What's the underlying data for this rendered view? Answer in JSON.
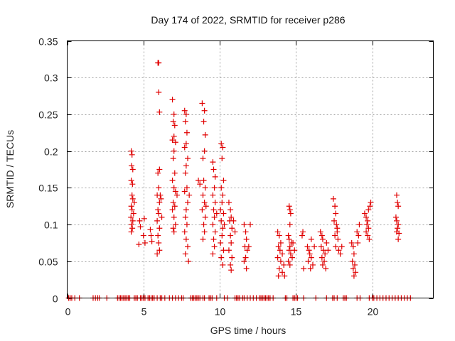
{
  "chart_data": {
    "type": "scatter",
    "title": "Day 174 of 2022, SRMTID for receiver p286",
    "xlabel": "GPS time / hours",
    "ylabel": "SRMTID / TECUs",
    "xlim": [
      0,
      24
    ],
    "ylim": [
      0,
      0.35
    ],
    "xticks": [
      0,
      5,
      10,
      15,
      20
    ],
    "xtick_labels": [
      "0",
      "5",
      "10",
      "15",
      "20"
    ],
    "yticks": [
      0,
      0.05,
      0.1,
      0.15,
      0.2,
      0.25,
      0.3,
      0.35
    ],
    "ytick_labels": [
      "0",
      "0.05",
      "0.1",
      "0.15",
      "0.2",
      "0.25",
      "0.3",
      "0.35"
    ],
    "grid": true,
    "legend": "none",
    "marker": "plus",
    "color": "#e00000",
    "series": [
      {
        "name": "SRMTID",
        "points": [
          [
            4.2,
            0.2
          ],
          [
            4.25,
            0.195
          ],
          [
            4.22,
            0.18
          ],
          [
            4.3,
            0.175
          ],
          [
            4.2,
            0.16
          ],
          [
            4.28,
            0.155
          ],
          [
            4.25,
            0.14
          ],
          [
            4.3,
            0.135
          ],
          [
            4.2,
            0.125
          ],
          [
            4.25,
            0.12
          ],
          [
            4.18,
            0.11
          ],
          [
            4.3,
            0.105
          ],
          [
            4.22,
            0.1
          ],
          [
            4.27,
            0.095
          ],
          [
            4.2,
            0.09
          ],
          [
            4.35,
            0.115
          ],
          [
            4.4,
            0.13
          ],
          [
            4.75,
            0.105
          ],
          [
            4.8,
            0.097
          ],
          [
            4.7,
            0.073
          ],
          [
            5.0,
            0.085
          ],
          [
            5.1,
            0.075
          ],
          [
            5.05,
            0.108
          ],
          [
            5.5,
            0.085
          ],
          [
            5.55,
            0.077
          ],
          [
            5.45,
            0.093
          ],
          [
            5.95,
            0.32
          ],
          [
            6.0,
            0.32
          ],
          [
            6.0,
            0.28
          ],
          [
            6.05,
            0.253
          ],
          [
            5.95,
            0.17
          ],
          [
            6.05,
            0.175
          ],
          [
            6.0,
            0.15
          ],
          [
            5.9,
            0.14
          ],
          [
            6.05,
            0.13
          ],
          [
            5.95,
            0.12
          ],
          [
            6.0,
            0.115
          ],
          [
            5.9,
            0.105
          ],
          [
            6.05,
            0.095
          ],
          [
            5.95,
            0.085
          ],
          [
            6.0,
            0.075
          ],
          [
            6.05,
            0.065
          ],
          [
            5.9,
            0.06
          ],
          [
            6.1,
            0.14
          ],
          [
            6.15,
            0.135
          ],
          [
            6.2,
            0.11
          ],
          [
            6.9,
            0.27
          ],
          [
            7.0,
            0.25
          ],
          [
            6.95,
            0.24
          ],
          [
            7.05,
            0.235
          ],
          [
            7.0,
            0.22
          ],
          [
            6.9,
            0.215
          ],
          [
            7.1,
            0.212
          ],
          [
            7.0,
            0.2
          ],
          [
            6.95,
            0.19
          ],
          [
            7.05,
            0.17
          ],
          [
            6.9,
            0.16
          ],
          [
            7.0,
            0.15
          ],
          [
            7.1,
            0.145
          ],
          [
            6.95,
            0.13
          ],
          [
            7.05,
            0.125
          ],
          [
            6.9,
            0.12
          ],
          [
            7.0,
            0.11
          ],
          [
            7.1,
            0.1
          ],
          [
            6.95,
            0.095
          ],
          [
            7.0,
            0.09
          ],
          [
            7.2,
            0.14
          ],
          [
            7.7,
            0.255
          ],
          [
            7.8,
            0.25
          ],
          [
            7.75,
            0.24
          ],
          [
            7.85,
            0.225
          ],
          [
            7.8,
            0.21
          ],
          [
            7.7,
            0.205
          ],
          [
            7.9,
            0.19
          ],
          [
            7.8,
            0.18
          ],
          [
            7.75,
            0.17
          ],
          [
            7.85,
            0.15
          ],
          [
            7.7,
            0.145
          ],
          [
            7.9,
            0.13
          ],
          [
            7.8,
            0.12
          ],
          [
            7.75,
            0.11
          ],
          [
            7.85,
            0.1
          ],
          [
            7.7,
            0.09
          ],
          [
            7.8,
            0.08
          ],
          [
            7.9,
            0.07
          ],
          [
            7.75,
            0.06
          ],
          [
            7.95,
            0.05
          ],
          [
            8.0,
            0.14
          ],
          [
            8.85,
            0.265
          ],
          [
            9.0,
            0.255
          ],
          [
            8.95,
            0.24
          ],
          [
            9.05,
            0.222
          ],
          [
            9.0,
            0.2
          ],
          [
            8.9,
            0.19
          ],
          [
            8.95,
            0.16
          ],
          [
            9.05,
            0.15
          ],
          [
            8.9,
            0.14
          ],
          [
            9.0,
            0.13
          ],
          [
            8.85,
            0.12
          ],
          [
            9.05,
            0.11
          ],
          [
            8.95,
            0.1
          ],
          [
            9.0,
            0.09
          ],
          [
            8.9,
            0.08
          ],
          [
            9.1,
            0.125
          ],
          [
            8.6,
            0.16
          ],
          [
            8.7,
            0.155
          ],
          [
            9.55,
            0.185
          ],
          [
            9.6,
            0.175
          ],
          [
            9.7,
            0.165
          ],
          [
            9.65,
            0.15
          ],
          [
            9.55,
            0.14
          ],
          [
            9.7,
            0.13
          ],
          [
            9.6,
            0.12
          ],
          [
            9.65,
            0.11
          ],
          [
            9.55,
            0.1
          ],
          [
            9.7,
            0.09
          ],
          [
            9.6,
            0.08
          ],
          [
            9.65,
            0.07
          ],
          [
            9.55,
            0.06
          ],
          [
            9.8,
            0.115
          ],
          [
            10.1,
            0.21
          ],
          [
            10.2,
            0.205
          ],
          [
            10.15,
            0.19
          ],
          [
            10.25,
            0.16
          ],
          [
            10.1,
            0.15
          ],
          [
            10.2,
            0.14
          ],
          [
            10.15,
            0.13
          ],
          [
            10.05,
            0.12
          ],
          [
            10.25,
            0.115
          ],
          [
            10.1,
            0.105
          ],
          [
            10.2,
            0.095
          ],
          [
            10.15,
            0.085
          ],
          [
            10.05,
            0.075
          ],
          [
            10.25,
            0.065
          ],
          [
            10.1,
            0.055
          ],
          [
            10.2,
            0.045
          ],
          [
            10.3,
            0.1
          ],
          [
            10.6,
            0.13
          ],
          [
            10.7,
            0.12
          ],
          [
            10.75,
            0.11
          ],
          [
            10.65,
            0.105
          ],
          [
            10.8,
            0.095
          ],
          [
            10.7,
            0.085
          ],
          [
            10.75,
            0.075
          ],
          [
            10.6,
            0.065
          ],
          [
            10.8,
            0.055
          ],
          [
            10.7,
            0.045
          ],
          [
            10.75,
            0.038
          ],
          [
            10.9,
            0.105
          ],
          [
            11.0,
            0.09
          ],
          [
            11.6,
            0.1
          ],
          [
            11.7,
            0.09
          ],
          [
            11.75,
            0.08
          ],
          [
            11.65,
            0.07
          ],
          [
            11.8,
            0.065
          ],
          [
            11.7,
            0.055
          ],
          [
            11.6,
            0.05
          ],
          [
            11.75,
            0.04
          ],
          [
            12.0,
            0.1
          ],
          [
            11.9,
            0.07
          ],
          [
            13.8,
            0.09
          ],
          [
            13.9,
            0.085
          ],
          [
            14.0,
            0.075
          ],
          [
            13.85,
            0.07
          ],
          [
            13.95,
            0.065
          ],
          [
            14.1,
            0.06
          ],
          [
            13.8,
            0.055
          ],
          [
            14.0,
            0.05
          ],
          [
            14.2,
            0.045
          ],
          [
            13.9,
            0.04
          ],
          [
            14.1,
            0.035
          ],
          [
            14.25,
            0.03
          ],
          [
            13.85,
            0.03
          ],
          [
            14.55,
            0.125
          ],
          [
            14.6,
            0.12
          ],
          [
            14.65,
            0.115
          ],
          [
            14.6,
            0.1
          ],
          [
            14.5,
            0.085
          ],
          [
            14.55,
            0.08
          ],
          [
            14.7,
            0.075
          ],
          [
            14.6,
            0.07
          ],
          [
            14.55,
            0.065
          ],
          [
            14.65,
            0.06
          ],
          [
            14.75,
            0.055
          ],
          [
            14.5,
            0.05
          ],
          [
            14.6,
            0.045
          ],
          [
            14.8,
            0.075
          ],
          [
            14.9,
            0.065
          ],
          [
            15.45,
            0.09
          ],
          [
            15.4,
            0.085
          ],
          [
            15.5,
            0.04
          ],
          [
            15.75,
            0.07
          ],
          [
            15.85,
            0.065
          ],
          [
            15.9,
            0.06
          ],
          [
            16.0,
            0.055
          ],
          [
            15.8,
            0.05
          ],
          [
            16.1,
            0.045
          ],
          [
            16.0,
            0.08
          ],
          [
            16.2,
            0.07
          ],
          [
            15.95,
            0.04
          ],
          [
            16.6,
            0.09
          ],
          [
            16.7,
            0.085
          ],
          [
            16.75,
            0.08
          ],
          [
            16.65,
            0.07
          ],
          [
            16.8,
            0.065
          ],
          [
            16.9,
            0.06
          ],
          [
            16.7,
            0.055
          ],
          [
            16.85,
            0.05
          ],
          [
            16.75,
            0.045
          ],
          [
            16.95,
            0.04
          ],
          [
            17.0,
            0.075
          ],
          [
            17.1,
            0.065
          ],
          [
            17.45,
            0.135
          ],
          [
            17.55,
            0.125
          ],
          [
            17.6,
            0.115
          ],
          [
            17.5,
            0.105
          ],
          [
            17.65,
            0.1
          ],
          [
            17.7,
            0.09
          ],
          [
            17.55,
            0.085
          ],
          [
            17.75,
            0.08
          ],
          [
            17.6,
            0.07
          ],
          [
            17.8,
            0.065
          ],
          [
            17.9,
            0.06
          ],
          [
            17.7,
            0.095
          ],
          [
            18.0,
            0.07
          ],
          [
            18.65,
            0.075
          ],
          [
            18.75,
            0.07
          ],
          [
            18.8,
            0.06
          ],
          [
            18.7,
            0.05
          ],
          [
            18.85,
            0.045
          ],
          [
            18.75,
            0.04
          ],
          [
            18.9,
            0.035
          ],
          [
            18.8,
            0.03
          ],
          [
            19.0,
            0.09
          ],
          [
            19.1,
            0.085
          ],
          [
            19.15,
            0.1
          ],
          [
            19.05,
            0.075
          ],
          [
            19.5,
            0.115
          ],
          [
            19.6,
            0.11
          ],
          [
            19.7,
            0.105
          ],
          [
            19.65,
            0.1
          ],
          [
            19.75,
            0.095
          ],
          [
            19.6,
            0.09
          ],
          [
            19.7,
            0.085
          ],
          [
            19.8,
            0.08
          ],
          [
            19.85,
            0.125
          ],
          [
            19.75,
            0.12
          ],
          [
            19.9,
            0.13
          ],
          [
            21.6,
            0.14
          ],
          [
            21.65,
            0.13
          ],
          [
            21.7,
            0.125
          ],
          [
            21.55,
            0.11
          ],
          [
            21.6,
            0.105
          ],
          [
            21.7,
            0.1
          ],
          [
            21.65,
            0.095
          ],
          [
            21.6,
            0.09
          ],
          [
            21.75,
            0.088
          ],
          [
            21.7,
            0.08
          ]
        ],
        "zero_points_hours": [
          0.1,
          0.2,
          0.3,
          0.5,
          0.8,
          1.7,
          1.85,
          2.0,
          2.1,
          2.6,
          3.3,
          3.4,
          3.5,
          3.6,
          3.7,
          3.8,
          3.9,
          4.0,
          4.1,
          4.4,
          4.5,
          4.6,
          4.8,
          4.9,
          5.0,
          5.1,
          5.3,
          5.4,
          5.5,
          5.6,
          5.7,
          5.9,
          6.1,
          6.2,
          6.4,
          6.7,
          6.9,
          7.1,
          7.3,
          7.5,
          7.6,
          8.1,
          8.2,
          8.3,
          8.4,
          8.5,
          8.6,
          8.7,
          8.9,
          9.0,
          9.3,
          9.4,
          9.5,
          9.8,
          10.3,
          10.5,
          11.0,
          11.1,
          11.2,
          11.3,
          11.5,
          11.6,
          11.8,
          12.0,
          12.2,
          12.4,
          12.6,
          12.7,
          12.8,
          12.9,
          13.0,
          13.1,
          13.2,
          13.3,
          13.5,
          14.3,
          14.4,
          14.8,
          14.9,
          15.0,
          15.1,
          15.5,
          16.3,
          17.0,
          17.4,
          17.5,
          17.7,
          18.1,
          18.2,
          18.3,
          19.0,
          19.2,
          19.8,
          20.0,
          20.1,
          20.3,
          20.5,
          20.7,
          20.9,
          21.1,
          21.3,
          21.5,
          21.7,
          21.9,
          22.1,
          22.3,
          22.5
        ]
      }
    ]
  }
}
